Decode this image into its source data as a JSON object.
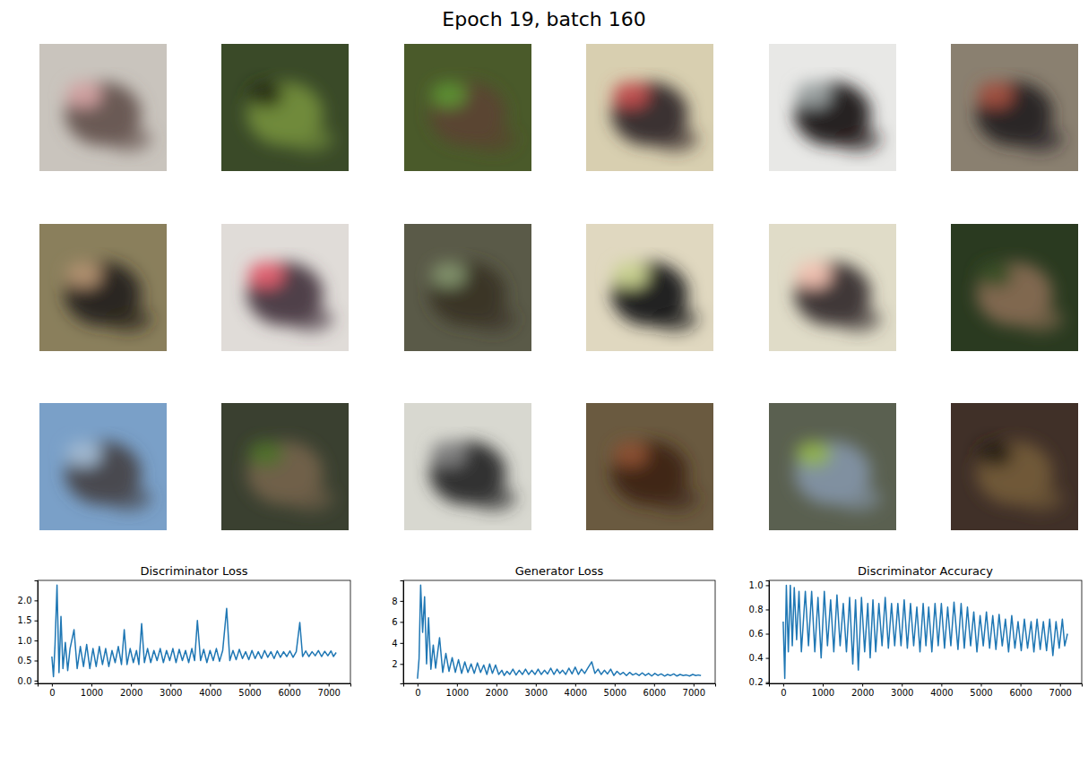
{
  "title": "Epoch 19, batch 160",
  "chart_data": [
    {
      "type": "line",
      "title": "Discriminator Loss",
      "color": "#1f77b4",
      "x": [
        0,
        40,
        80,
        130,
        180,
        230,
        280,
        340,
        400,
        460,
        560,
        640,
        720,
        800,
        880,
        960,
        1040,
        1120,
        1200,
        1280,
        1360,
        1440,
        1520,
        1600,
        1680,
        1760,
        1830,
        1900,
        1980,
        2060,
        2140,
        2200,
        2270,
        2340,
        2420,
        2500,
        2580,
        2660,
        2740,
        2820,
        2900,
        2980,
        3060,
        3140,
        3220,
        3300,
        3380,
        3460,
        3540,
        3610,
        3680,
        3760,
        3840,
        3920,
        4000,
        4080,
        4160,
        4240,
        4320,
        4420,
        4500,
        4580,
        4660,
        4740,
        4820,
        4900,
        4980,
        5060,
        5140,
        5220,
        5300,
        5380,
        5460,
        5540,
        5620,
        5700,
        5780,
        5860,
        5940,
        6020,
        6100,
        6180,
        6270,
        6340,
        6420,
        6500,
        6580,
        6660,
        6740,
        6820,
        6900,
        6980,
        7060,
        7120,
        7190
      ],
      "values": [
        0.6,
        0.1,
        0.9,
        2.38,
        0.2,
        1.6,
        0.3,
        0.95,
        0.25,
        0.8,
        1.27,
        0.3,
        0.85,
        0.35,
        0.9,
        0.3,
        0.8,
        0.35,
        0.85,
        0.4,
        0.8,
        0.35,
        0.75,
        0.45,
        0.85,
        0.4,
        1.27,
        0.4,
        0.8,
        0.45,
        0.75,
        0.4,
        1.42,
        0.45,
        0.8,
        0.45,
        0.75,
        0.5,
        0.8,
        0.45,
        0.75,
        0.5,
        0.8,
        0.45,
        0.78,
        0.5,
        0.75,
        0.45,
        0.8,
        0.5,
        1.5,
        0.5,
        0.78,
        0.45,
        0.75,
        0.5,
        0.8,
        0.48,
        0.75,
        1.8,
        0.5,
        0.75,
        0.52,
        0.78,
        0.55,
        0.72,
        0.52,
        0.75,
        0.55,
        0.72,
        0.55,
        0.75,
        0.58,
        0.72,
        0.55,
        0.74,
        0.58,
        0.72,
        0.6,
        0.74,
        0.58,
        0.72,
        1.45,
        0.6,
        0.74,
        0.6,
        0.72,
        0.62,
        0.75,
        0.6,
        0.73,
        0.62,
        0.74,
        0.6,
        0.7
      ],
      "xlim": [
        -360,
        7550
      ],
      "xticks": [
        0,
        1000,
        2000,
        3000,
        4000,
        5000,
        6000,
        7000
      ],
      "ylim": [
        -0.07,
        2.5
      ],
      "yticks": [
        {
          "value": 0,
          "label": "0.0"
        },
        0.5,
        {
          "value": 1,
          "label": "1.0"
        },
        1.5,
        {
          "value": 2,
          "label": "2.0"
        }
      ]
    },
    {
      "type": "line",
      "title": "Generator Loss",
      "color": "#1f77b4",
      "x": [
        0,
        40,
        80,
        130,
        180,
        230,
        280,
        340,
        400,
        460,
        560,
        640,
        720,
        800,
        880,
        960,
        1040,
        1120,
        1200,
        1280,
        1360,
        1440,
        1520,
        1600,
        1680,
        1760,
        1830,
        1900,
        1980,
        2060,
        2140,
        2200,
        2270,
        2340,
        2420,
        2500,
        2580,
        2660,
        2740,
        2820,
        2900,
        2980,
        3060,
        3140,
        3220,
        3300,
        3380,
        3460,
        3540,
        3610,
        3680,
        3760,
        3840,
        3920,
        4000,
        4080,
        4160,
        4240,
        4320,
        4420,
        4500,
        4580,
        4660,
        4740,
        4820,
        4900,
        4980,
        5060,
        5140,
        5220,
        5300,
        5380,
        5460,
        5540,
        5620,
        5700,
        5780,
        5860,
        5940,
        6020,
        6100,
        6180,
        6270,
        6340,
        6420,
        6500,
        6580,
        6660,
        6740,
        6820,
        6900,
        6980,
        7060,
        7120,
        7190
      ],
      "values": [
        0.6,
        2.5,
        9.5,
        5.0,
        8.4,
        2.0,
        6.4,
        1.5,
        3.8,
        1.6,
        4.5,
        1.2,
        3.0,
        1.3,
        2.6,
        1.2,
        2.4,
        1.1,
        2.2,
        1.2,
        2.0,
        1.1,
        2.1,
        1.2,
        1.9,
        1.0,
        2.0,
        1.1,
        1.9,
        1.0,
        1.4,
        0.9,
        1.3,
        1.0,
        1.5,
        0.95,
        1.4,
        1.0,
        1.5,
        1.0,
        1.4,
        1.0,
        1.5,
        1.0,
        1.4,
        1.05,
        1.6,
        1.0,
        1.5,
        1.1,
        1.4,
        1.0,
        1.6,
        1.05,
        1.7,
        1.0,
        1.5,
        1.1,
        1.6,
        2.2,
        1.1,
        1.5,
        1.0,
        1.4,
        1.05,
        1.5,
        0.9,
        1.3,
        1.0,
        1.2,
        0.9,
        1.2,
        0.95,
        1.1,
        0.9,
        1.15,
        0.9,
        1.1,
        0.85,
        1.1,
        0.9,
        1.05,
        0.85,
        1.0,
        0.9,
        1.05,
        0.85,
        1.0,
        0.9,
        0.95,
        0.85,
        1.0,
        0.9,
        0.95,
        0.9
      ],
      "xlim": [
        -360,
        7550
      ],
      "xticks": [
        0,
        1000,
        2000,
        3000,
        4000,
        5000,
        6000,
        7000
      ],
      "ylim": [
        0.15,
        9.95
      ],
      "yticks": [
        2,
        4,
        6,
        8
      ]
    },
    {
      "type": "line",
      "title": "Discriminator Accuracy",
      "color": "#1f77b4",
      "x": [
        0,
        40,
        80,
        130,
        180,
        230,
        280,
        340,
        400,
        460,
        560,
        640,
        720,
        800,
        880,
        960,
        1040,
        1120,
        1200,
        1280,
        1360,
        1440,
        1520,
        1600,
        1680,
        1760,
        1830,
        1900,
        1980,
        2060,
        2140,
        2200,
        2270,
        2340,
        2420,
        2500,
        2580,
        2660,
        2740,
        2820,
        2900,
        2980,
        3060,
        3140,
        3220,
        3300,
        3380,
        3460,
        3540,
        3610,
        3680,
        3760,
        3840,
        3920,
        4000,
        4080,
        4160,
        4240,
        4320,
        4420,
        4500,
        4580,
        4660,
        4740,
        4820,
        4900,
        4980,
        5060,
        5140,
        5220,
        5300,
        5380,
        5460,
        5540,
        5620,
        5700,
        5780,
        5860,
        5940,
        6020,
        6100,
        6180,
        6270,
        6340,
        6420,
        6500,
        6580,
        6660,
        6740,
        6820,
        6900,
        6980,
        7060,
        7120,
        7190
      ],
      "values": [
        0.7,
        0.23,
        1.0,
        0.45,
        1.0,
        0.5,
        0.98,
        0.55,
        0.95,
        0.45,
        0.95,
        0.5,
        0.95,
        0.45,
        0.9,
        0.4,
        0.95,
        0.5,
        0.88,
        0.45,
        0.92,
        0.5,
        0.85,
        0.45,
        0.9,
        0.35,
        0.88,
        0.3,
        0.9,
        0.45,
        0.85,
        0.4,
        0.88,
        0.45,
        0.85,
        0.5,
        0.9,
        0.48,
        0.85,
        0.5,
        0.85,
        0.5,
        0.88,
        0.48,
        0.85,
        0.5,
        0.82,
        0.45,
        0.85,
        0.5,
        0.82,
        0.45,
        0.85,
        0.5,
        0.85,
        0.48,
        0.82,
        0.5,
        0.86,
        0.47,
        0.85,
        0.48,
        0.82,
        0.5,
        0.78,
        0.45,
        0.75,
        0.5,
        0.78,
        0.48,
        0.75,
        0.47,
        0.76,
        0.5,
        0.72,
        0.45,
        0.75,
        0.48,
        0.7,
        0.46,
        0.72,
        0.48,
        0.7,
        0.45,
        0.72,
        0.47,
        0.7,
        0.46,
        0.72,
        0.42,
        0.7,
        0.48,
        0.72,
        0.5,
        0.6
      ],
      "xlim": [
        -360,
        7550
      ],
      "xticks": [
        0,
        1000,
        2000,
        3000,
        4000,
        5000,
        6000,
        7000
      ],
      "ylim": [
        0.19,
        1.04
      ],
      "yticks": [
        0.2,
        0.4,
        0.6,
        0.8,
        {
          "value": 1,
          "label": "1.0"
        }
      ]
    }
  ]
}
